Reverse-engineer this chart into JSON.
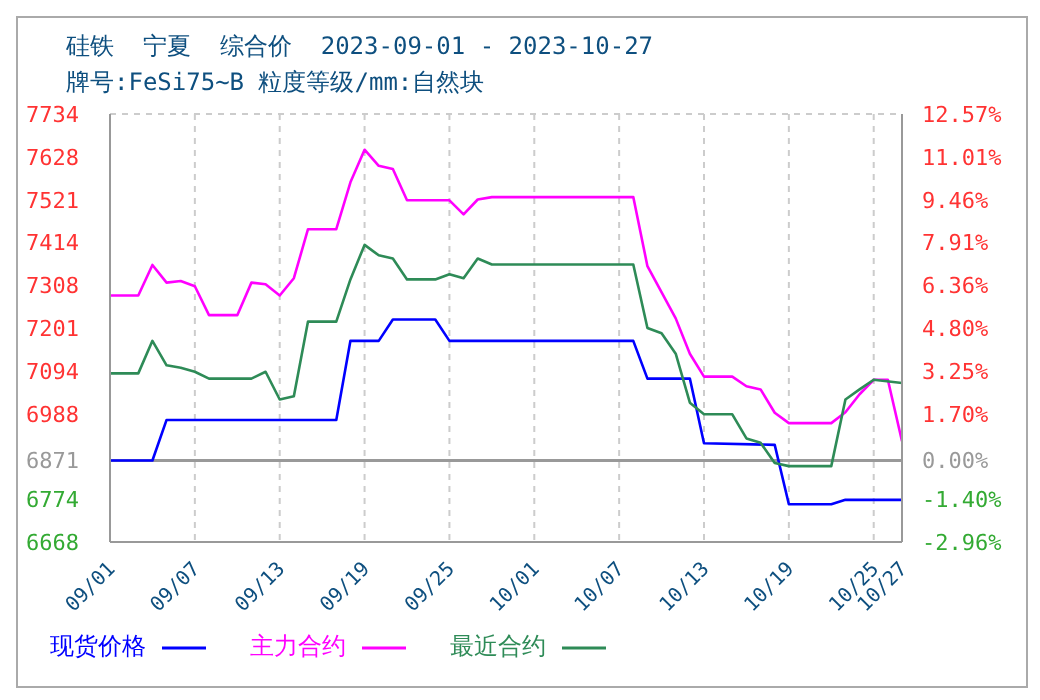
{
  "chart_data": {
    "type": "line",
    "title": "硅铁  宁夏  综合价  2023-09-01 - 2023-10-27",
    "subtitle": "牌号:FeSi75~B 粒度等级/mm:自然块",
    "series": [
      {
        "name": "现货价格",
        "color": "#0000ff",
        "x": [
          "2023-09-01",
          "2023-09-04",
          "2023-09-05",
          "2023-09-17",
          "2023-09-18",
          "2023-09-20",
          "2023-09-21",
          "2023-09-24",
          "2023-09-25",
          "2023-10-08",
          "2023-10-09",
          "2023-10-12",
          "2023-10-13",
          "2023-10-18",
          "2023-10-19",
          "2023-10-22",
          "2023-10-23",
          "2023-10-27"
        ],
        "values": [
          6871,
          6871,
          6972,
          6972,
          7169,
          7169,
          7222,
          7222,
          7169,
          7169,
          7075,
          7075,
          6914,
          6910,
          6762,
          6762,
          6773,
          6773
        ]
      },
      {
        "name": "主力合约",
        "color": "#ff00ff",
        "x": [
          "2023-09-01",
          "2023-09-03",
          "2023-09-04",
          "2023-09-05",
          "2023-09-06",
          "2023-09-07",
          "2023-09-08",
          "2023-09-10",
          "2023-09-11",
          "2023-09-12",
          "2023-09-13",
          "2023-09-14",
          "2023-09-15",
          "2023-09-17",
          "2023-09-18",
          "2023-09-19",
          "2023-09-20",
          "2023-09-21",
          "2023-09-22",
          "2023-09-25",
          "2023-09-26",
          "2023-09-27",
          "2023-09-28",
          "2023-10-08",
          "2023-10-09",
          "2023-10-11",
          "2023-10-12",
          "2023-10-13",
          "2023-10-15",
          "2023-10-16",
          "2023-10-17",
          "2023-10-18",
          "2023-10-19",
          "2023-10-22",
          "2023-10-23",
          "2023-10-24",
          "2023-10-25",
          "2023-10-26",
          "2023-10-27"
        ],
        "values": [
          7282,
          7282,
          7358,
          7314,
          7318,
          7305,
          7233,
          7233,
          7314,
          7310,
          7282,
          7325,
          7447,
          7447,
          7564,
          7645,
          7605,
          7597,
          7519,
          7519,
          7484,
          7521,
          7527,
          7527,
          7355,
          7225,
          7137,
          7080,
          7080,
          7056,
          7048,
          6990,
          6964,
          6964,
          6991,
          7036,
          7072,
          7072,
          6919
        ]
      },
      {
        "name": "最近合约",
        "color": "#2e8b57",
        "x": [
          "2023-09-01",
          "2023-09-03",
          "2023-09-04",
          "2023-09-05",
          "2023-09-06",
          "2023-09-07",
          "2023-09-08",
          "2023-09-11",
          "2023-09-12",
          "2023-09-13",
          "2023-09-14",
          "2023-09-15",
          "2023-09-17",
          "2023-09-18",
          "2023-09-19",
          "2023-09-20",
          "2023-09-21",
          "2023-09-22",
          "2023-09-24",
          "2023-09-25",
          "2023-09-26",
          "2023-09-27",
          "2023-09-28",
          "2023-10-08",
          "2023-10-09",
          "2023-10-10",
          "2023-10-11",
          "2023-10-12",
          "2023-10-13",
          "2023-10-15",
          "2023-10-16",
          "2023-10-17",
          "2023-10-18",
          "2023-10-19",
          "2023-10-22",
          "2023-10-23",
          "2023-10-24",
          "2023-10-25",
          "2023-10-27"
        ],
        "values": [
          7088,
          7088,
          7169,
          7108,
          7102,
          7092,
          7075,
          7075,
          7092,
          7023,
          7031,
          7217,
          7217,
          7322,
          7408,
          7382,
          7374,
          7322,
          7322,
          7335,
          7325,
          7374,
          7359,
          7359,
          7201,
          7188,
          7137,
          7015,
          6986,
          6986,
          6926,
          6915,
          6865,
          6857,
          6857,
          7023,
          7048,
          7072,
          7064
        ]
      }
    ],
    "xlim": [
      "2023-09-01",
      "2023-10-27"
    ],
    "xticks": [
      {
        "value": "2023-09-01",
        "label": "09/01"
      },
      {
        "value": "2023-09-07",
        "label": "09/07"
      },
      {
        "value": "2023-09-13",
        "label": "09/13"
      },
      {
        "value": "2023-09-19",
        "label": "09/19"
      },
      {
        "value": "2023-09-25",
        "label": "09/25"
      },
      {
        "value": "2023-10-01",
        "label": "10/01"
      },
      {
        "value": "2023-10-07",
        "label": "10/07"
      },
      {
        "value": "2023-10-13",
        "label": "10/13"
      },
      {
        "value": "2023-10-19",
        "label": "10/19"
      },
      {
        "value": "2023-10-25",
        "label": "10/25"
      },
      {
        "value": "2023-10-27",
        "label": "10/27"
      }
    ],
    "ylim": [
      6668,
      7734
    ],
    "yticks": [
      6668,
      6774,
      6871,
      6988,
      7094,
      7201,
      7308,
      7414,
      7521,
      7628,
      7734
    ],
    "y2lim": [
      -2.96,
      12.57
    ],
    "y2ticks": [
      {
        "value": -2.96,
        "label": "-2.96%"
      },
      {
        "value": -1.4,
        "label": "-1.40%"
      },
      {
        "value": 0,
        "label": "0.00%"
      },
      {
        "value": 1.7,
        "label": "1.70%"
      },
      {
        "value": 3.25,
        "label": "3.25%"
      },
      {
        "value": 4.8,
        "label": "4.80%"
      },
      {
        "value": 6.36,
        "label": "6.36%"
      },
      {
        "value": 7.91,
        "label": "7.91%"
      },
      {
        "value": 9.46,
        "label": "9.46%"
      },
      {
        "value": 11.01,
        "label": "11.01%"
      },
      {
        "value": 12.57,
        "label": "12.57%"
      }
    ],
    "ref_lines": [
      {
        "axis": "y",
        "value": 6871,
        "color": "#999999"
      }
    ],
    "grid": true,
    "legend": "bottom",
    "marker": "none",
    "line_style": "solid"
  }
}
